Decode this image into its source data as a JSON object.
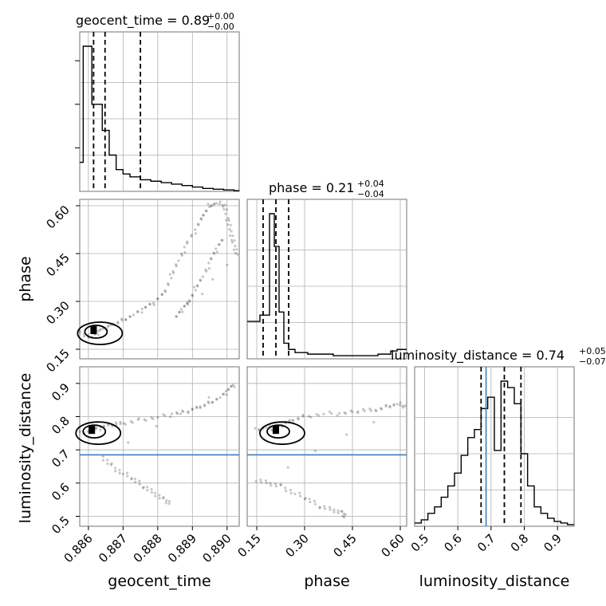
{
  "chart_data": [
    {
      "type": "corner",
      "parameters": [
        "geocent_time",
        "phase",
        "luminosity_distance"
      ],
      "titles": [
        {
          "text": "geocent_time = 0.89",
          "plus": "+0.00",
          "minus": "−0.00"
        },
        {
          "text": "phase = 0.21",
          "plus": "+0.04",
          "minus": "−0.04"
        },
        {
          "text": "luminosity_distance = 0.74",
          "plus": "+0.05",
          "minus": "−0.07"
        }
      ],
      "axis_labels": [
        "geocent_time",
        "phase",
        "luminosity_distance"
      ],
      "ticks": {
        "geocent_time": [
          "0.886",
          "0.887",
          "0.888",
          "0.889",
          "0.890"
        ],
        "phase": [
          "0.15",
          "0.30",
          "0.45",
          "0.60"
        ],
        "luminosity_distance": [
          "0.5",
          "0.6",
          "0.7",
          "0.8",
          "0.9"
        ]
      },
      "tick_values": {
        "geocent_time": [
          0.886,
          0.887,
          0.888,
          0.889,
          0.89
        ],
        "phase": [
          0.15,
          0.3,
          0.45,
          0.6
        ],
        "luminosity_distance": [
          0.5,
          0.6,
          0.7,
          0.8,
          0.9
        ]
      },
      "ranges": {
        "geocent_time": [
          0.88575,
          0.89035
        ],
        "phase": [
          0.12,
          0.62
        ],
        "luminosity_distance": [
          0.47,
          0.95
        ]
      },
      "truth": {
        "luminosity_distance": 0.685
      },
      "histograms": {
        "geocent_time": {
          "edges": [
            0.88575,
            0.8858,
            0.88585,
            0.8861,
            0.8864,
            0.8866,
            0.8868,
            0.887,
            0.8872,
            0.8875,
            0.8878,
            0.8881,
            0.8884,
            0.8887,
            0.889,
            0.8893,
            0.8896,
            0.8899,
            0.8902,
            0.89035
          ],
          "counts": [
            0.2,
            0.2,
            1.0,
            0.6,
            0.42,
            0.25,
            0.15,
            0.12,
            0.1,
            0.08,
            0.07,
            0.06,
            0.05,
            0.04,
            0.03,
            0.02,
            0.015,
            0.01,
            0.005
          ],
          "quantiles": [
            0.88615,
            0.88648,
            0.8875
          ]
        },
        "phase": {
          "edges": [
            0.12,
            0.14,
            0.16,
            0.175,
            0.19,
            0.205,
            0.22,
            0.235,
            0.25,
            0.27,
            0.31,
            0.39,
            0.47,
            0.53,
            0.57,
            0.59,
            0.61,
            0.62
          ],
          "counts": [
            0.24,
            0.24,
            0.28,
            0.28,
            0.93,
            0.72,
            0.3,
            0.1,
            0.06,
            0.04,
            0.03,
            0.02,
            0.02,
            0.03,
            0.05,
            0.06,
            0.06
          ],
          "quantiles": [
            0.17,
            0.21,
            0.25
          ]
        },
        "luminosity_distance": {
          "edges": [
            0.47,
            0.49,
            0.51,
            0.53,
            0.55,
            0.57,
            0.59,
            0.61,
            0.63,
            0.65,
            0.67,
            0.69,
            0.71,
            0.73,
            0.75,
            0.77,
            0.79,
            0.81,
            0.83,
            0.85,
            0.87,
            0.89,
            0.91,
            0.93,
            0.95
          ],
          "counts": [
            0.02,
            0.04,
            0.08,
            0.12,
            0.18,
            0.25,
            0.33,
            0.44,
            0.55,
            0.6,
            0.73,
            0.8,
            0.47,
            0.9,
            0.86,
            0.76,
            0.45,
            0.25,
            0.12,
            0.08,
            0.05,
            0.03,
            0.02,
            0.01
          ],
          "quantiles": [
            0.67,
            0.74,
            0.79
          ]
        }
      },
      "scatter_pairs": [
        {
          "x": "geocent_time",
          "y": "phase",
          "points": [
            [
              0.8858,
              0.2
            ],
            [
              0.8861,
              0.19
            ],
            [
              0.8863,
              0.21
            ],
            [
              0.8865,
              0.22
            ],
            [
              0.8867,
              0.23
            ],
            [
              0.887,
              0.24
            ],
            [
              0.8873,
              0.26
            ],
            [
              0.8876,
              0.28
            ],
            [
              0.8879,
              0.3
            ],
            [
              0.8882,
              0.33
            ],
            [
              0.8884,
              0.38
            ],
            [
              0.8886,
              0.43
            ],
            [
              0.8888,
              0.48
            ],
            [
              0.8891,
              0.53
            ],
            [
              0.8893,
              0.57
            ],
            [
              0.8895,
              0.6
            ],
            [
              0.8897,
              0.61
            ],
            [
              0.8899,
              0.6
            ],
            [
              0.89,
              0.56
            ],
            [
              0.8901,
              0.52
            ],
            [
              0.8902,
              0.48
            ],
            [
              0.8903,
              0.45
            ],
            [
              0.8885,
              0.25
            ],
            [
              0.8887,
              0.28
            ],
            [
              0.8889,
              0.3
            ],
            [
              0.8891,
              0.34
            ],
            [
              0.8893,
              0.38
            ],
            [
              0.8895,
              0.43
            ],
            [
              0.8897,
              0.47
            ],
            [
              0.8899,
              0.5
            ]
          ],
          "density_peak": [
            0.88615,
            0.21
          ]
        },
        {
          "x": "geocent_time",
          "y": "luminosity_distance",
          "points": [
            [
              0.8858,
              0.75
            ],
            [
              0.8861,
              0.76
            ],
            [
              0.8864,
              0.77
            ],
            [
              0.8867,
              0.78
            ],
            [
              0.887,
              0.78
            ],
            [
              0.8875,
              0.79
            ],
            [
              0.888,
              0.8
            ],
            [
              0.8885,
              0.81
            ],
            [
              0.8889,
              0.82
            ],
            [
              0.8892,
              0.83
            ],
            [
              0.8895,
              0.84
            ],
            [
              0.8898,
              0.86
            ],
            [
              0.89,
              0.88
            ],
            [
              0.8902,
              0.9
            ],
            [
              0.8864,
              0.68
            ],
            [
              0.8867,
              0.65
            ],
            [
              0.887,
              0.63
            ],
            [
              0.8873,
              0.61
            ],
            [
              0.8876,
              0.59
            ],
            [
              0.8879,
              0.57
            ],
            [
              0.8882,
              0.55
            ],
            [
              0.8884,
              0.54
            ]
          ],
          "density_peak": [
            0.8861,
            0.76
          ]
        },
        {
          "x": "phase",
          "y": "luminosity_distance",
          "points": [
            [
              0.15,
              0.76
            ],
            [
              0.18,
              0.77
            ],
            [
              0.2,
              0.76
            ],
            [
              0.23,
              0.78
            ],
            [
              0.26,
              0.79
            ],
            [
              0.3,
              0.8
            ],
            [
              0.36,
              0.81
            ],
            [
              0.42,
              0.81
            ],
            [
              0.47,
              0.82
            ],
            [
              0.52,
              0.82
            ],
            [
              0.56,
              0.83
            ],
            [
              0.59,
              0.84
            ],
            [
              0.61,
              0.83
            ],
            [
              0.15,
              0.61
            ],
            [
              0.19,
              0.6
            ],
            [
              0.23,
              0.59
            ],
            [
              0.27,
              0.57
            ],
            [
              0.31,
              0.55
            ],
            [
              0.35,
              0.53
            ],
            [
              0.39,
              0.52
            ],
            [
              0.42,
              0.51
            ],
            [
              0.43,
              0.5
            ]
          ],
          "density_peak": [
            0.21,
            0.76
          ]
        }
      ]
    }
  ]
}
